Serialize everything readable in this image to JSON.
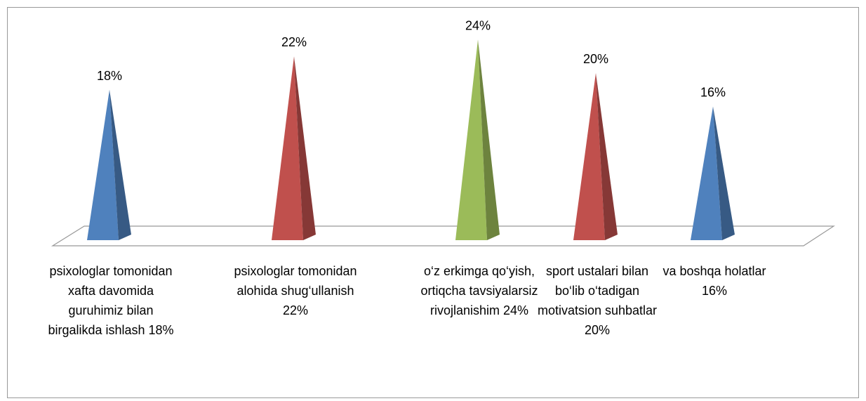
{
  "chart_data": {
    "type": "pyramid",
    "categories": [
      "psixologlar tomonidan xafta davomida guruhimiz bilan birgalikda ishlash 18%",
      "psixologlar tomonidan alohida shug‘ullanish 22%",
      "o‘z erkimga qo‘yish, ortiqcha tavsiyalarsiz rivojlanishim 24%",
      "sport ustalari bilan bo‘lib o‘tadigan motivatsion suhbatlar  20%",
      "va boshqa holatlar 16%"
    ],
    "values": [
      18,
      22,
      24,
      20,
      16
    ],
    "value_labels": [
      "18%",
      "22%",
      "24%",
      "20%",
      "16%"
    ],
    "colors": [
      "#4f81bd",
      "#c0504d",
      "#9bbb59",
      "#c0504d",
      "#4f81bd"
    ]
  }
}
